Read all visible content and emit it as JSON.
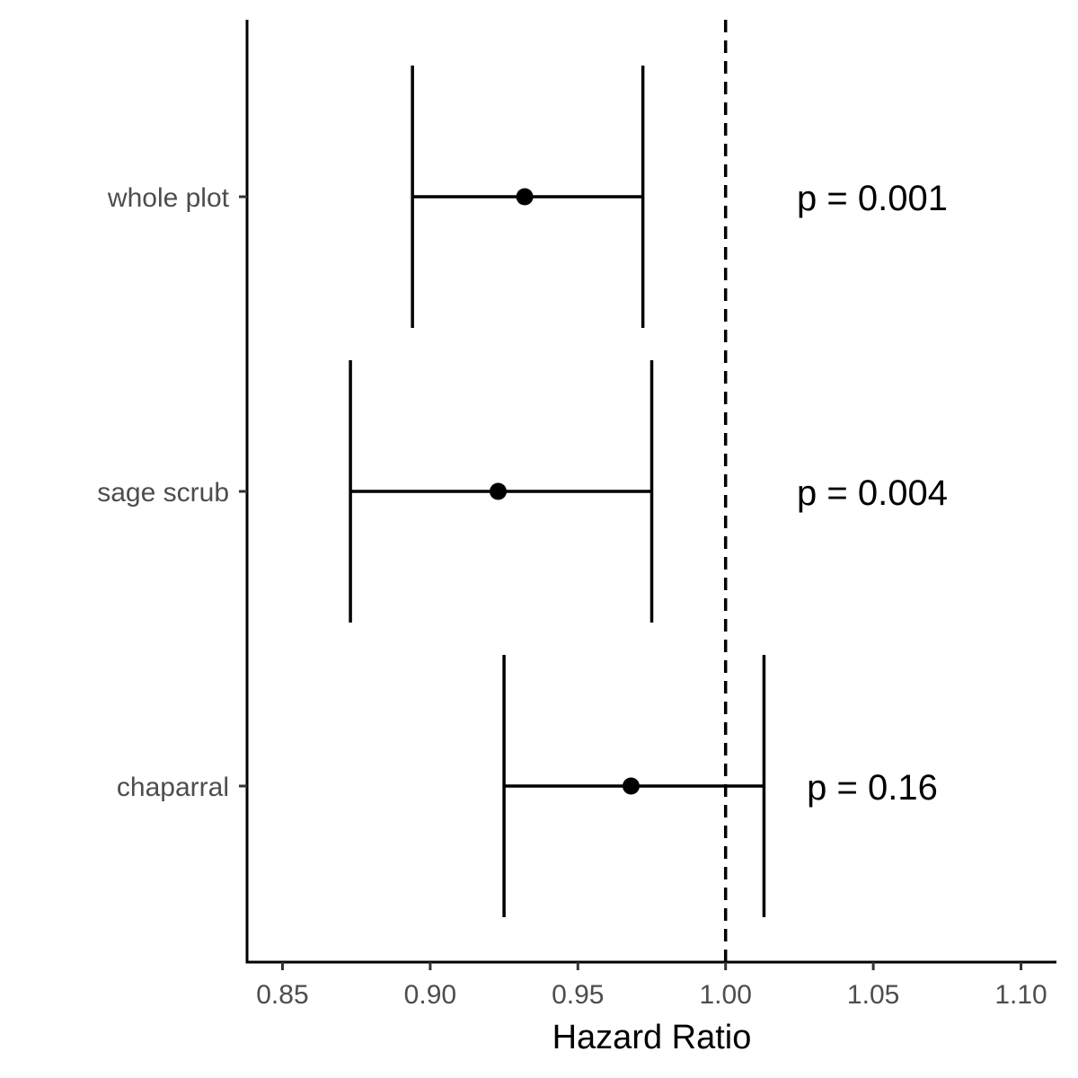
{
  "chart_data": {
    "type": "forest",
    "xlabel": "Hazard Ratio",
    "ylabel": "",
    "xlim": [
      0.838,
      1.112
    ],
    "xticks": [
      0.85,
      0.9,
      0.95,
      1.0,
      1.05,
      1.1
    ],
    "xtick_labels": [
      "0.85",
      "0.90",
      "0.95",
      "1.00",
      "1.05",
      "1.10"
    ],
    "reference_line": 1.0,
    "reference_line_style": "dashed",
    "grid": false,
    "legend": "none",
    "colors": {
      "marks": "#000000",
      "tick_text": "#4d4d4d"
    },
    "rows": [
      {
        "label": "whole plot",
        "estimate": 0.932,
        "lower": 0.894,
        "upper": 0.972,
        "p_label": "p = 0.001"
      },
      {
        "label": "sage scrub",
        "estimate": 0.923,
        "lower": 0.873,
        "upper": 0.975,
        "p_label": "p = 0.004"
      },
      {
        "label": "chaparral",
        "estimate": 0.968,
        "lower": 0.925,
        "upper": 1.013,
        "p_label": "p = 0.16"
      }
    ]
  }
}
